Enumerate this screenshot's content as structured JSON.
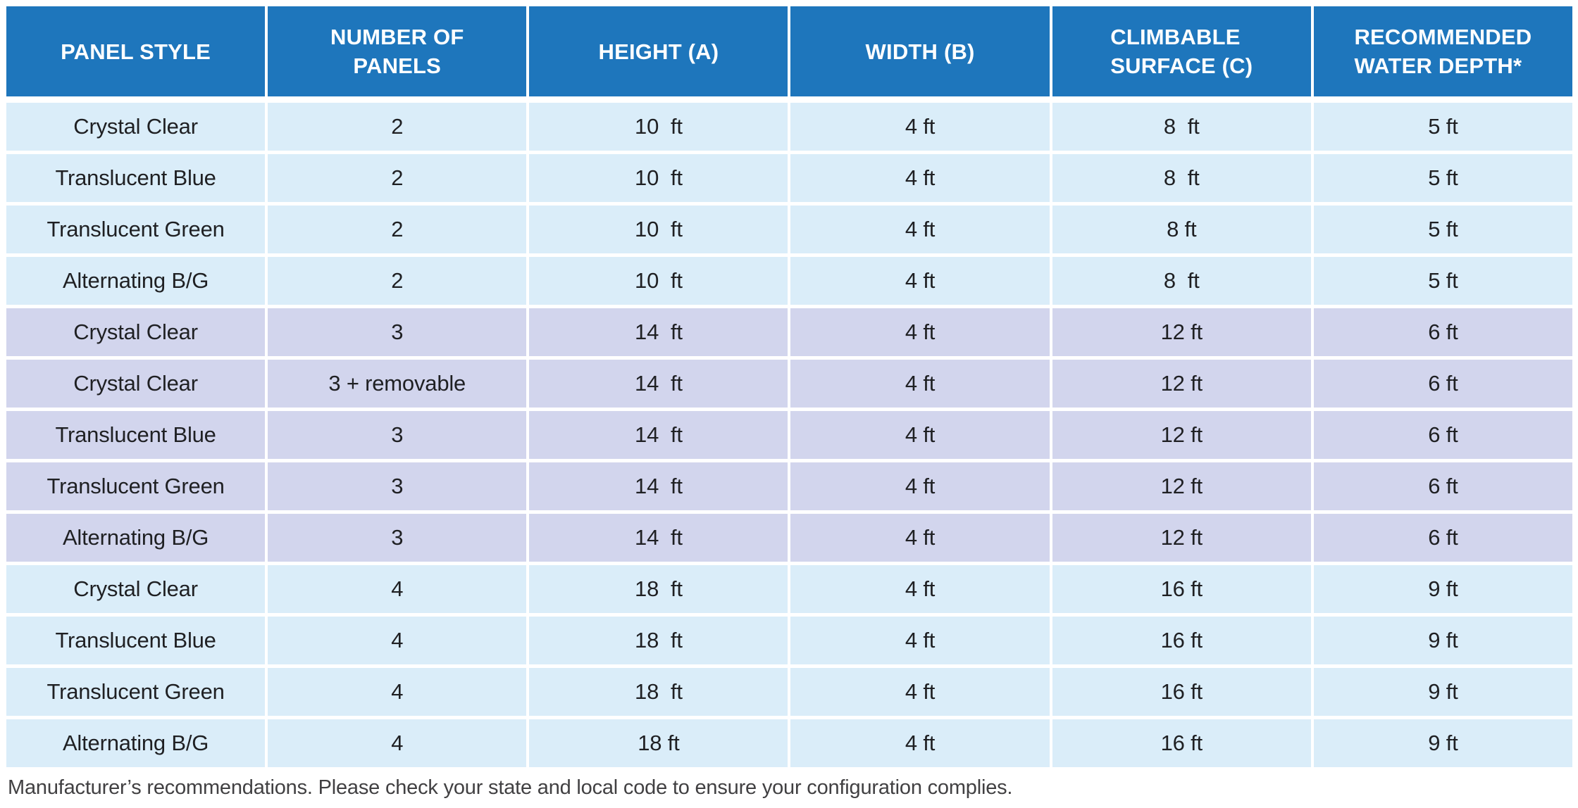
{
  "colors": {
    "header_bg": "#1E76BC",
    "header_text": "#FFFFFF",
    "row_blue": "#DAEDF9",
    "row_lavender": "#D2D5ED",
    "cell_text": "#1F2023",
    "footer_text": "#414042",
    "divider": "#FFFFFF"
  },
  "table": {
    "columns": [
      {
        "label": "PANEL STYLE",
        "align": "center"
      },
      {
        "label": "NUMBER OF\nPANELS",
        "align": "center"
      },
      {
        "label": "HEIGHT (A)",
        "align": "center"
      },
      {
        "label": "WIDTH (B)",
        "align": "center"
      },
      {
        "label": "CLIMBABLE\nSURFACE (C)",
        "align": "left-block"
      },
      {
        "label": "RECOMMENDED\nWATER DEPTH*",
        "align": "left-block"
      }
    ],
    "rows": [
      {
        "group": "blue",
        "cells": [
          "Crystal Clear",
          "2",
          "10  ft",
          "4 ft",
          "8  ft",
          "5 ft"
        ]
      },
      {
        "group": "blue",
        "cells": [
          "Translucent Blue",
          "2",
          "10  ft",
          "4 ft",
          "8  ft",
          "5 ft"
        ]
      },
      {
        "group": "blue",
        "cells": [
          "Translucent Green",
          "2",
          "10  ft",
          "4 ft",
          "8 ft",
          "5 ft"
        ]
      },
      {
        "group": "blue",
        "cells": [
          "Alternating B/G",
          "2",
          "10  ft",
          "4 ft",
          "8  ft",
          "5 ft"
        ]
      },
      {
        "group": "lavender",
        "cells": [
          "Crystal Clear",
          "3",
          "14  ft",
          "4 ft",
          "12 ft",
          "6 ft"
        ]
      },
      {
        "group": "lavender",
        "cells": [
          "Crystal Clear",
          "3 + removable",
          "14  ft",
          "4 ft",
          "12 ft",
          "6 ft"
        ]
      },
      {
        "group": "lavender",
        "cells": [
          "Translucent Blue",
          "3",
          "14  ft",
          "4 ft",
          "12 ft",
          "6 ft"
        ]
      },
      {
        "group": "lavender",
        "cells": [
          "Translucent Green",
          "3",
          "14  ft",
          "4 ft",
          "12 ft",
          "6 ft"
        ]
      },
      {
        "group": "lavender",
        "cells": [
          "Alternating B/G",
          "3",
          "14  ft",
          "4 ft",
          "12 ft",
          "6 ft"
        ]
      },
      {
        "group": "blue",
        "cells": [
          "Crystal Clear",
          "4",
          "18  ft",
          "4 ft",
          "16 ft",
          "9 ft"
        ]
      },
      {
        "group": "blue",
        "cells": [
          "Translucent Blue",
          "4",
          "18  ft",
          "4 ft",
          "16 ft",
          "9 ft"
        ]
      },
      {
        "group": "blue",
        "cells": [
          "Translucent Green",
          "4",
          "18  ft",
          "4 ft",
          "16 ft",
          "9 ft"
        ]
      },
      {
        "group": "blue",
        "cells": [
          "Alternating B/G",
          "4",
          "18 ft",
          "4 ft",
          "16 ft",
          "9 ft"
        ]
      }
    ]
  },
  "footer": {
    "note": "Manufacturer’s recommendations. Please check your state and local code to ensure your configuration complies."
  }
}
